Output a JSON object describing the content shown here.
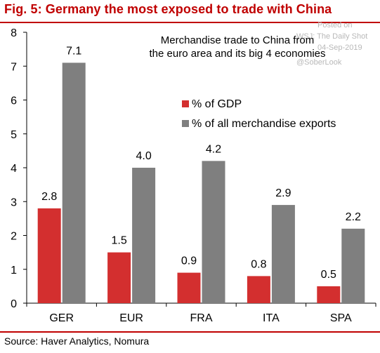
{
  "header": {
    "title": "Fig. 5: Germany the most exposed to trade with China"
  },
  "watermark": {
    "posted": "Posted on",
    "outlet": "WSJ: The Daily Shot",
    "date": "04-Sep-2019",
    "handle": "@SoberLook"
  },
  "footer": {
    "source": "Source: Haver Analytics, Nomura"
  },
  "colors": {
    "accent": "#c00000",
    "gdp_bar": "#d32f2f",
    "exports_bar": "#7f7f7f"
  },
  "chart_data": {
    "type": "bar",
    "title": "",
    "annotation": "Merchandise trade to China from the euro area and its big 4 economies",
    "annotation_lines": [
      "Merchandise trade to China from",
      "the euro area and its big 4 economies"
    ],
    "categories": [
      "GER",
      "EUR",
      "FRA",
      "ITA",
      "SPA"
    ],
    "series": [
      {
        "name": "% of GDP",
        "values": [
          2.8,
          1.5,
          0.9,
          0.8,
          0.5
        ],
        "labels": [
          "2.8",
          "1.5",
          "0.9",
          "0.8",
          "0.5"
        ],
        "color": "#d32f2f"
      },
      {
        "name": "% of all merchandise exports",
        "values": [
          7.1,
          4.0,
          4.2,
          2.9,
          2.2
        ],
        "labels": [
          "7.1",
          "4.0",
          "4.2",
          "2.9",
          "2.2"
        ],
        "color": "#7f7f7f"
      }
    ],
    "xlabel": "",
    "ylabel": "",
    "ylim": [
      0,
      8
    ],
    "yticks": [
      0,
      1,
      2,
      3,
      4,
      5,
      6,
      7,
      8
    ],
    "grid": false,
    "legend_position": "center-right"
  }
}
